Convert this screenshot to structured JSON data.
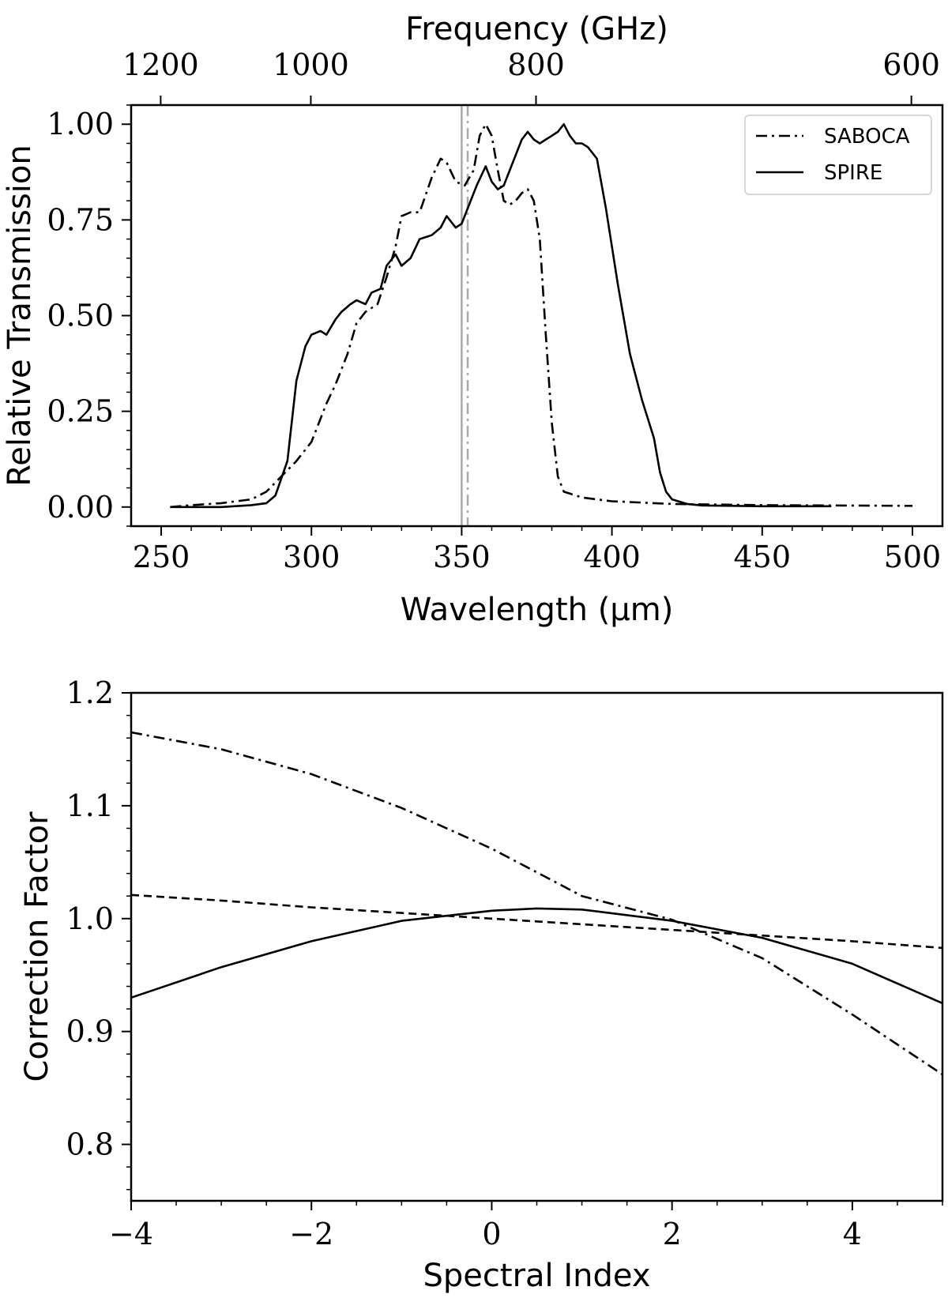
{
  "chart_data": [
    {
      "type": "line",
      "title": "",
      "xlabel": "Wavelength (μm)",
      "ylabel": "Relative Transmission",
      "x2label": "Frequency (GHz)",
      "xlim": [
        240,
        510
      ],
      "ylim": [
        -0.05,
        1.05
      ],
      "xticks": [
        250,
        300,
        350,
        400,
        450,
        500
      ],
      "xtick_labels": [
        "250",
        "300",
        "350",
        "400",
        "450",
        "500"
      ],
      "yticks": [
        0.0,
        0.25,
        0.5,
        0.75,
        1.0
      ],
      "ytick_labels": [
        "0.00",
        "0.25",
        "0.50",
        "0.75",
        "1.00"
      ],
      "x2ticks": [
        1200,
        1000,
        800,
        600
      ],
      "x2tick_labels": [
        "1200",
        "1000",
        "800",
        "600"
      ],
      "legend_position": "top-right",
      "vlines": [
        {
          "x": 350,
          "style": "solid",
          "color": "#aaaaaa"
        },
        {
          "x": 352,
          "style": "dashdot",
          "color": "#aaaaaa"
        }
      ],
      "series": [
        {
          "name": "SABOCA",
          "style": "dashdot",
          "x": [
            253,
            260,
            270,
            280,
            285,
            290,
            295,
            300,
            305,
            308,
            312,
            315,
            318,
            322,
            325,
            328,
            330,
            333,
            336,
            340,
            343,
            345,
            348,
            351,
            354,
            356,
            358,
            360,
            362,
            364,
            366,
            368,
            370,
            372,
            374,
            376,
            378,
            380,
            382,
            384,
            386,
            390,
            400,
            420,
            450,
            500
          ],
          "values": [
            0.0,
            0.005,
            0.01,
            0.02,
            0.04,
            0.08,
            0.12,
            0.17,
            0.27,
            0.32,
            0.4,
            0.48,
            0.51,
            0.53,
            0.6,
            0.68,
            0.76,
            0.77,
            0.77,
            0.86,
            0.91,
            0.9,
            0.85,
            0.84,
            0.88,
            0.97,
            1.0,
            0.97,
            0.88,
            0.8,
            0.79,
            0.8,
            0.82,
            0.83,
            0.8,
            0.7,
            0.45,
            0.22,
            0.08,
            0.04,
            0.035,
            0.025,
            0.015,
            0.008,
            0.005,
            0.003
          ]
        },
        {
          "name": "SPIRE",
          "style": "solid",
          "x": [
            253,
            260,
            270,
            280,
            285,
            288,
            292,
            295,
            298,
            300,
            303,
            305,
            308,
            310,
            313,
            315,
            318,
            320,
            323,
            325,
            328,
            330,
            333,
            336,
            340,
            343,
            345,
            348,
            350,
            352,
            355,
            358,
            360,
            362,
            364,
            366,
            368,
            370,
            372,
            374,
            376,
            378,
            380,
            382,
            384,
            386,
            388,
            390,
            392,
            395,
            398,
            402,
            406,
            410,
            414,
            416,
            418,
            420,
            425,
            430,
            450,
            473
          ],
          "values": [
            0.0,
            0.0,
            0.0,
            0.005,
            0.01,
            0.03,
            0.12,
            0.33,
            0.42,
            0.45,
            0.46,
            0.45,
            0.49,
            0.51,
            0.53,
            0.54,
            0.53,
            0.56,
            0.57,
            0.63,
            0.66,
            0.63,
            0.65,
            0.7,
            0.71,
            0.73,
            0.76,
            0.73,
            0.74,
            0.78,
            0.84,
            0.89,
            0.85,
            0.83,
            0.84,
            0.88,
            0.92,
            0.96,
            0.98,
            0.96,
            0.95,
            0.96,
            0.97,
            0.98,
            1.0,
            0.97,
            0.95,
            0.95,
            0.94,
            0.91,
            0.78,
            0.58,
            0.4,
            0.28,
            0.18,
            0.09,
            0.04,
            0.02,
            0.008,
            0.004,
            0.002,
            0.002
          ]
        }
      ]
    },
    {
      "type": "line",
      "title": "",
      "xlabel": "Spectral Index",
      "ylabel": "Correction Factor",
      "xlim": [
        -4,
        5
      ],
      "ylim": [
        0.75,
        1.2
      ],
      "xticks": [
        -4,
        -2,
        0,
        2,
        4
      ],
      "xtick_labels": [
        "−4",
        "−2",
        "0",
        "2",
        "4"
      ],
      "yticks": [
        0.8,
        0.9,
        1.0,
        1.1,
        1.2
      ],
      "ytick_labels": [
        "0.8",
        "0.9",
        "1.0",
        "1.1",
        "1.2"
      ],
      "series": [
        {
          "name": "",
          "style": "dashdot",
          "x": [
            -4,
            -3,
            -2,
            -1,
            0,
            1,
            2,
            3,
            4,
            5
          ],
          "values": [
            1.165,
            1.15,
            1.128,
            1.098,
            1.062,
            1.02,
            0.999,
            0.965,
            0.915,
            0.862
          ]
        },
        {
          "name": "",
          "style": "dashed",
          "x": [
            -4,
            -3,
            -2,
            -1,
            0,
            1,
            2,
            3,
            4,
            5
          ],
          "values": [
            1.021,
            1.016,
            1.01,
            1.005,
            1.0,
            0.995,
            0.99,
            0.985,
            0.98,
            0.974
          ]
        },
        {
          "name": "",
          "style": "solid",
          "x": [
            -4,
            -3,
            -2,
            -1,
            0,
            0.5,
            1,
            2,
            3,
            4,
            5
          ],
          "values": [
            0.93,
            0.957,
            0.98,
            0.998,
            1.007,
            1.009,
            1.008,
            0.998,
            0.983,
            0.96,
            0.925
          ]
        }
      ]
    }
  ]
}
